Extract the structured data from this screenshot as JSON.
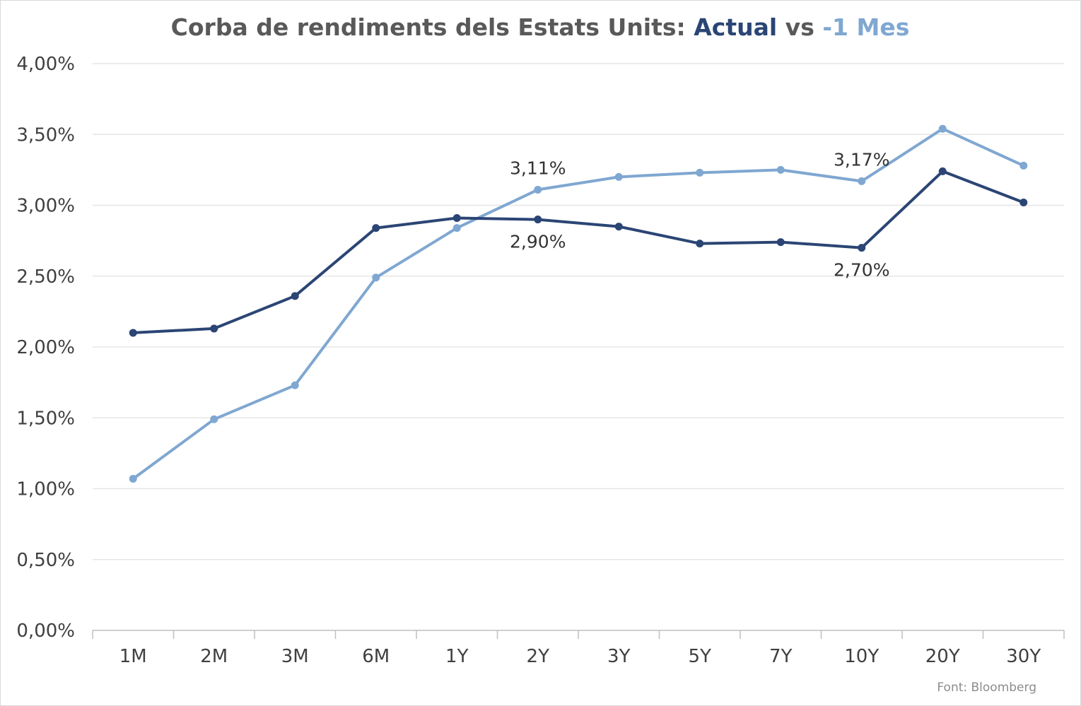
{
  "chart_data": {
    "type": "line",
    "title_parts": [
      {
        "text": "Corba de rendiments dels Estats Units: ",
        "color": "#595959"
      },
      {
        "text": "Actual",
        "color": "#2b4574"
      },
      {
        "text": " vs ",
        "color": "#595959"
      },
      {
        "text": "-1 Mes",
        "color": "#7fa7d1"
      }
    ],
    "categories": [
      "1M",
      "2M",
      "3M",
      "6M",
      "1Y",
      "2Y",
      "3Y",
      "5Y",
      "7Y",
      "10Y",
      "20Y",
      "30Y"
    ],
    "y_ticks": [
      "0,00%",
      "0,50%",
      "1,00%",
      "1,50%",
      "2,00%",
      "2,50%",
      "3,00%",
      "3,50%",
      "4,00%"
    ],
    "ylim": [
      0,
      4
    ],
    "y_step": 0.5,
    "grid": true,
    "series": [
      {
        "key": "actual",
        "name": "Actual",
        "color": "#2b4574",
        "values": [
          2.1,
          2.13,
          2.36,
          2.84,
          2.91,
          2.9,
          2.85,
          2.73,
          2.74,
          2.7,
          3.24,
          3.02
        ]
      },
      {
        "key": "prev",
        "name": "-1 Mes",
        "color": "#7fa7d1",
        "values": [
          1.07,
          1.49,
          1.73,
          2.49,
          2.84,
          3.11,
          3.2,
          3.23,
          3.25,
          3.17,
          3.54,
          3.28
        ]
      }
    ],
    "data_labels": [
      {
        "series": "prev",
        "index": 5,
        "text": "3,11%",
        "placement": "above"
      },
      {
        "series": "prev",
        "index": 9,
        "text": "3,17%",
        "placement": "above"
      },
      {
        "series": "actual",
        "index": 5,
        "text": "2,90%",
        "placement": "below"
      },
      {
        "series": "actual",
        "index": 9,
        "text": "2,70%",
        "placement": "below"
      }
    ],
    "source": "Font: Bloomberg"
  }
}
